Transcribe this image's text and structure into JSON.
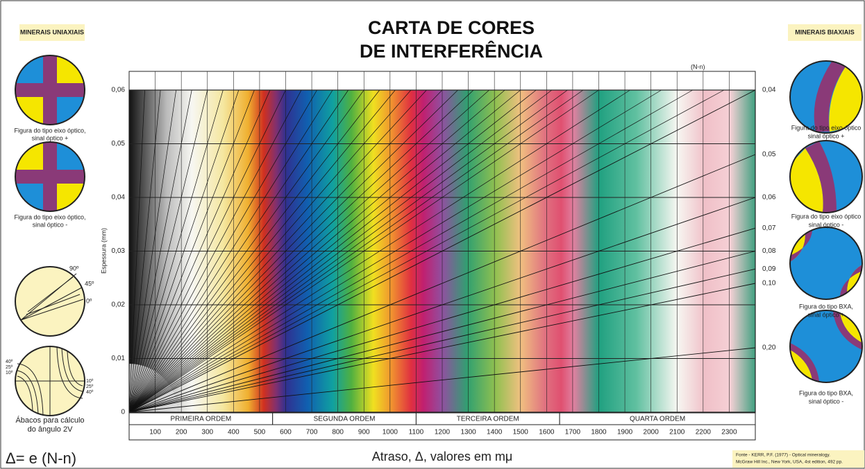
{
  "header": {
    "title_line1": "CARTA DE CORES",
    "title_line2": "DE INTERFERÊNCIA"
  },
  "left_panel": {
    "heading": "MINERAIS UNIAXIAIS",
    "captions": [
      [
        "Figura do tipo eixo óptico,",
        "sinal óptico +"
      ],
      [
        "Figura do tipo eixo óptico,",
        "sinal óptico -"
      ]
    ],
    "abacus_labels": [
      "90º",
      "45º",
      "0º"
    ],
    "abacus_labels_2": [
      "40º",
      "25º",
      "10º"
    ],
    "abacus_caption": [
      "Ábacos para cálculo",
      "do ângulo 2V"
    ],
    "formula": "Δ= e (N-n)"
  },
  "right_panel": {
    "heading": "MINERAIS BIAXIAIS",
    "captions": [
      [
        "Figura do tipo eixo óptico",
        "sinal óptico +"
      ],
      [
        "Figura do tipo eixo óptico",
        "sinal óptico -"
      ],
      [
        "Figura do tipo BXA,",
        "sinal óptico +"
      ],
      [
        "Figura do tipo BXA,",
        "sinal óptico -"
      ]
    ]
  },
  "source": [
    "Fonte - KERR, P.F. (1977) - Optical mineralogy.",
    "McGraw Hill Inc., New York, USA, 4st edition, 492 pp."
  ],
  "chart_data": {
    "type": "michel-levy",
    "x_label": "Atraso, Δ, valores em mμ",
    "y_label": "Espessura (mm)",
    "top_label": "(N-n)",
    "xlim": [
      0,
      2400
    ],
    "ylim": [
      0,
      0.06
    ],
    "xticks": [
      100,
      200,
      300,
      400,
      500,
      600,
      700,
      800,
      900,
      1000,
      1100,
      1200,
      1300,
      1400,
      1500,
      1600,
      1700,
      1800,
      1900,
      2000,
      2100,
      2200,
      2300
    ],
    "yticks": [
      0,
      {
        "value": 0.01,
        "label": "0,01"
      },
      {
        "value": 0.02,
        "label": "0,02"
      },
      {
        "value": 0.03,
        "label": "0,03"
      },
      {
        "value": 0.04,
        "label": "0,04"
      },
      {
        "value": 0.05,
        "label": "0,05"
      },
      {
        "value": 0.06,
        "label": "0,06"
      }
    ],
    "orders": [
      {
        "label": "PRIMEIRA ORDEM",
        "range": [
          0,
          550
        ]
      },
      {
        "label": "SEGUNDA ORDEM",
        "range": [
          550,
          1100
        ]
      },
      {
        "label": "TERCEIRA ORDEM",
        "range": [
          1100,
          1650
        ]
      },
      {
        "label": "QUARTA ORDEM",
        "range": [
          1650,
          2400
        ]
      }
    ],
    "birefringence": {
      "values": [
        0.04,
        0.05,
        0.06,
        0.07,
        0.08,
        0.09,
        0.1,
        0.2
      ],
      "value_labels": [
        "0,04",
        "0,05",
        "0,06",
        "0,07",
        "0,08",
        "0,09",
        "0,10",
        "0,20"
      ]
    },
    "minor_birefringence": {
      "values": [
        0.001,
        0.002,
        0.003,
        0.004,
        0.005,
        0.006,
        0.007,
        0.008,
        0.009,
        0.01,
        0.011,
        0.012,
        0.013,
        0.014,
        0.015,
        0.016,
        0.017,
        0.018,
        0.019,
        0.02,
        0.021,
        0.022,
        0.023,
        0.024,
        0.025,
        0.026,
        0.027,
        0.028,
        0.029,
        0.03,
        0.032,
        0.034,
        0.036,
        0.038
      ]
    }
  }
}
